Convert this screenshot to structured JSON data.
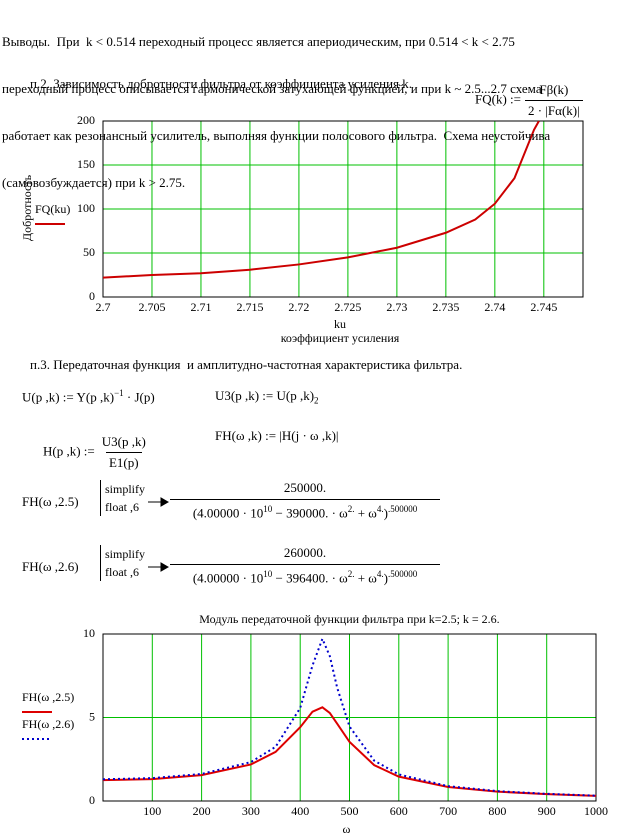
{
  "conclusion": [
    "Выводы.  При  k < 0.514 переходный процесс является апериодическим, при 0.514 < k < 2.75",
    "переходный процесс описывается гармонической затухающей функцией, и при k ~ 2.5...2.7 схема",
    "работает как резонансный усилитель, выполняя функции полосового фильтра.  Схема неустойчива",
    "(самовозбуждается) при k > 2.75."
  ],
  "section2": {
    "heading": "п.2. Зависимость добротности фильтра от коэффициента усиления k.",
    "formula": {
      "lhs": "FQ(k) :=",
      "numerator": "Fβ(k)",
      "denominator": "2 · |Fα(k)|"
    }
  },
  "section3": {
    "heading": "п.3. Передаточная функция  и амплитудно-частотная характеристика фильтра.",
    "u_def": [
      "U(p ,k) := Y(p ,k)",
      "−1",
      " · J(p)"
    ],
    "u3_def": [
      "U3(p ,k) := U(p ,k)",
      "2"
    ],
    "h_def": {
      "lhs": "H(p ,k) :=",
      "numerator": "U3(p ,k)",
      "denominator": "E1(p)"
    },
    "fh_def": "FH(ω ,k) := |H(j · ω ,k)|",
    "results": [
      {
        "lhs": "FH(ω ,2.5)",
        "keywords": [
          "simplify",
          "float ,6"
        ],
        "numerator": "250000.",
        "denominator": [
          "(4.00000 · 10",
          "10",
          " − 390000. · ω",
          "2.",
          " + ω",
          "4.",
          ")",
          ".500000"
        ]
      },
      {
        "lhs": "FH(ω ,2.6)",
        "keywords": [
          "simplify",
          "float ,6"
        ],
        "numerator": "260000.",
        "denominator": [
          "(4.00000 · 10",
          "10",
          " − 396400. · ω",
          "2.",
          " + ω",
          "4.",
          ")",
          ".500000"
        ]
      }
    ]
  },
  "chart_data": [
    {
      "type": "line",
      "ylabel": "Добротность",
      "xlabel": "ku",
      "xlabel_caption": "коэффициент усиления",
      "x": [
        2.7,
        2.705,
        2.71,
        2.715,
        2.72,
        2.725,
        2.73,
        2.735,
        2.738,
        2.74,
        2.742,
        2.744,
        2.7445
      ],
      "series": [
        {
          "name": "FQ(ku)",
          "color": "#cc0000",
          "line_style": "solid",
          "values": [
            22,
            25,
            27,
            31,
            37,
            45,
            56,
            73,
            88,
            106,
            135,
            190,
            200
          ]
        }
      ],
      "xlim": [
        2.7,
        2.749
      ],
      "xticks": [
        2.7,
        2.705,
        2.71,
        2.715,
        2.72,
        2.725,
        2.73,
        2.735,
        2.74,
        2.745
      ],
      "ylim": [
        0,
        200
      ],
      "yticks": [
        0,
        50,
        100,
        150,
        200
      ],
      "grid": true,
      "grid_color": "#00c000"
    },
    {
      "type": "line",
      "title": "Модуль передаточной функции фильтра при  k=2.5;  k = 2.6.",
      "xlabel": "ω",
      "x": [
        0,
        100,
        200,
        300,
        350,
        400,
        425,
        445,
        460,
        475,
        500,
        550,
        600,
        700,
        800,
        900,
        1000
      ],
      "series": [
        {
          "name": "FH(ω ,2.5)",
          "color": "#dd0000",
          "line_style": "solid",
          "values": [
            1.25,
            1.31,
            1.55,
            2.19,
            2.94,
            4.42,
            5.35,
            5.61,
            5.27,
            4.63,
            3.54,
            2.15,
            1.46,
            0.84,
            0.56,
            0.41,
            0.31
          ]
        },
        {
          "name": "FH(ω ,2.6)",
          "color": "#0000cc",
          "line_style": "dotted",
          "values": [
            1.3,
            1.37,
            1.62,
            2.33,
            3.24,
            5.57,
            8.12,
            9.71,
            8.68,
            6.78,
            4.46,
            2.42,
            1.59,
            0.89,
            0.59,
            0.43,
            0.32
          ]
        }
      ],
      "xlim": [
        0,
        1000
      ],
      "xticks": [
        100,
        200,
        300,
        400,
        500,
        600,
        700,
        800,
        900,
        1000
      ],
      "ylim": [
        0,
        10
      ],
      "yticks": [
        0,
        5,
        10
      ],
      "grid": true,
      "grid_color": "#00c000"
    }
  ]
}
